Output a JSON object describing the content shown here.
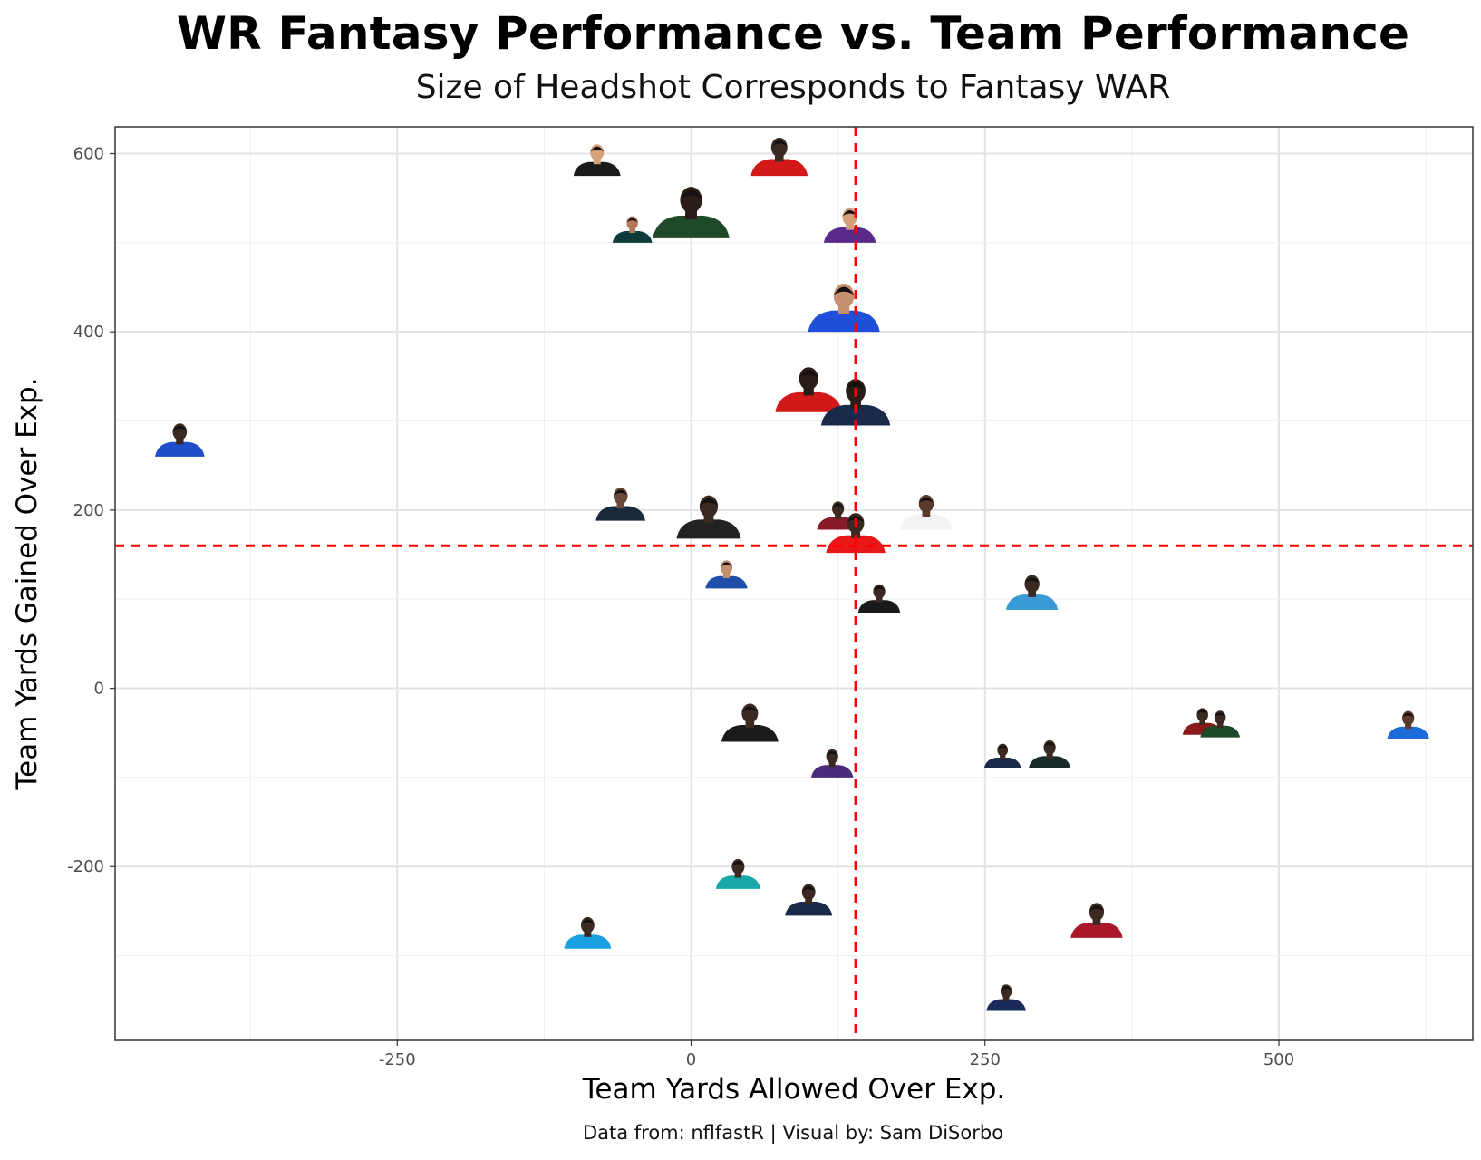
{
  "chart_data": {
    "type": "scatter",
    "title": "WR Fantasy Performance vs. Team Performance",
    "subtitle": "Size of Headshot Corresponds to Fantasy WAR",
    "caption": "Data from: nflfastR | Visual by: Sam DiSorbo",
    "xlabel": "Team Yards Allowed Over Exp.",
    "ylabel": "Team Yards Gained Over Exp.",
    "xlim": [
      -490,
      665
    ],
    "ylim": [
      -395,
      630
    ],
    "x_ticks": [
      -250,
      0,
      250,
      500
    ],
    "x_tick_labels": [
      "-250",
      "0",
      "250",
      "500"
    ],
    "y_ticks": [
      -200,
      0,
      200,
      400,
      600
    ],
    "y_tick_labels": [
      "-200",
      "0",
      "200",
      "400",
      "600"
    ],
    "grid": true,
    "reference_lines": {
      "x": 140,
      "y": 160,
      "color": "#ff0000",
      "style": "dashed"
    },
    "points": [
      {
        "x": -435,
        "y": 260,
        "size": 1.0,
        "jersey": "#1e4fc8",
        "skin": "#3a2a22"
      },
      {
        "x": -80,
        "y": 575,
        "size": 0.95,
        "jersey": "#1a1a1a",
        "skin": "#d4a07a"
      },
      {
        "x": 75,
        "y": 575,
        "size": 1.15,
        "jersey": "#d31818",
        "skin": "#3a2a22"
      },
      {
        "x": -50,
        "y": 500,
        "size": 0.8,
        "jersey": "#0f3a3a",
        "skin": "#b07a5a"
      },
      {
        "x": 0,
        "y": 505,
        "size": 1.55,
        "jersey": "#1f4a2a",
        "skin": "#2a1c16"
      },
      {
        "x": 135,
        "y": 500,
        "size": 1.05,
        "jersey": "#5a2a8a",
        "skin": "#d4a07a"
      },
      {
        "x": 130,
        "y": 400,
        "size": 1.45,
        "jersey": "#1f4fd8",
        "skin": "#c49070"
      },
      {
        "x": 100,
        "y": 310,
        "size": 1.35,
        "jersey": "#d31818",
        "skin": "#2a1c16"
      },
      {
        "x": 140,
        "y": 295,
        "size": 1.4,
        "jersey": "#1a2a4a",
        "skin": "#2a1c16"
      },
      {
        "x": -60,
        "y": 188,
        "size": 1.0,
        "jersey": "#1a2a3a",
        "skin": "#6a4a3a"
      },
      {
        "x": 15,
        "y": 168,
        "size": 1.3,
        "jersey": "#222222",
        "skin": "#3a2a22"
      },
      {
        "x": 125,
        "y": 178,
        "size": 0.85,
        "jersey": "#8a1a2a",
        "skin": "#3a2a22"
      },
      {
        "x": 200,
        "y": 178,
        "size": 1.05,
        "jersey": "#f2f2f2",
        "skin": "#5a3a2a"
      },
      {
        "x": 140,
        "y": 152,
        "size": 1.2,
        "jersey": "#e81818",
        "skin": "#3a2a22"
      },
      {
        "x": 30,
        "y": 112,
        "size": 0.85,
        "jersey": "#1f4fa8",
        "skin": "#c49070"
      },
      {
        "x": 160,
        "y": 85,
        "size": 0.85,
        "jersey": "#1a1a1a",
        "skin": "#3a2a22"
      },
      {
        "x": 290,
        "y": 88,
        "size": 1.05,
        "jersey": "#3a9ad8",
        "skin": "#3a2a22"
      },
      {
        "x": 50,
        "y": -60,
        "size": 1.15,
        "jersey": "#1a1a1a",
        "skin": "#3a2a22"
      },
      {
        "x": 120,
        "y": -100,
        "size": 0.85,
        "jersey": "#4a2a7a",
        "skin": "#3a2a22"
      },
      {
        "x": 265,
        "y": -90,
        "size": 0.75,
        "jersey": "#1a2a4a",
        "skin": "#3a2a22"
      },
      {
        "x": 305,
        "y": -90,
        "size": 0.85,
        "jersey": "#1a2a2a",
        "skin": "#3a2a22"
      },
      {
        "x": 435,
        "y": -52,
        "size": 0.8,
        "jersey": "#8a1a1a",
        "skin": "#3a2a22"
      },
      {
        "x": 450,
        "y": -55,
        "size": 0.8,
        "jersey": "#1a4a2a",
        "skin": "#3a2a22"
      },
      {
        "x": 610,
        "y": -57,
        "size": 0.85,
        "jersey": "#1a6ad8",
        "skin": "#5a3a2a"
      },
      {
        "x": 40,
        "y": -225,
        "size": 0.9,
        "jersey": "#18a8a8",
        "skin": "#3a2a22"
      },
      {
        "x": 100,
        "y": -255,
        "size": 0.95,
        "jersey": "#1a2a4a",
        "skin": "#3a2a22"
      },
      {
        "x": -88,
        "y": -292,
        "size": 0.95,
        "jersey": "#18a0e0",
        "skin": "#3a2a22"
      },
      {
        "x": 345,
        "y": -280,
        "size": 1.05,
        "jersey": "#a8182a",
        "skin": "#3a2a22"
      },
      {
        "x": 268,
        "y": -362,
        "size": 0.8,
        "jersey": "#1a2a5a",
        "skin": "#3a2a22"
      }
    ]
  }
}
